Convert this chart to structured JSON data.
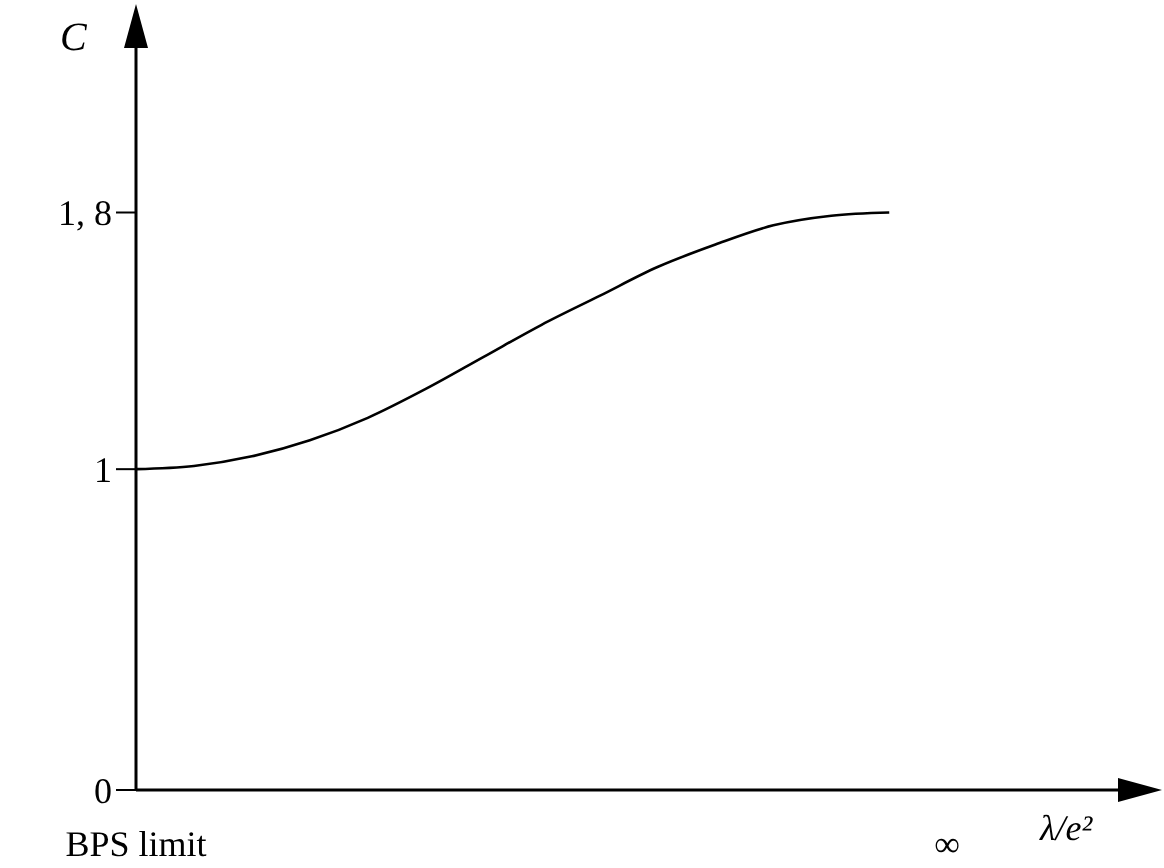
{
  "chart_data": {
    "type": "line",
    "ylabel": "C",
    "xlabel": "λ/e²",
    "categories": [
      "BPS limit",
      null,
      null,
      null,
      null,
      null,
      null,
      null,
      null,
      null,
      null,
      null,
      null,
      null,
      "∞",
      null,
      null,
      null
    ],
    "values": [
      1,
      1.01,
      1.04,
      1.09,
      1.16,
      1.25,
      1.35,
      1.45,
      1.54,
      1.63,
      1.7,
      1.76,
      1.79,
      1.8,
      null,
      null,
      null,
      null
    ],
    "color": "#000000",
    "ylim": [
      0,
      2.4
    ],
    "yticks": [
      0,
      1,
      {
        "value": 1.8,
        "label": "1, 8"
      }
    ],
    "grid": false,
    "legend": false,
    "marker": "none",
    "line_style": "solid"
  }
}
